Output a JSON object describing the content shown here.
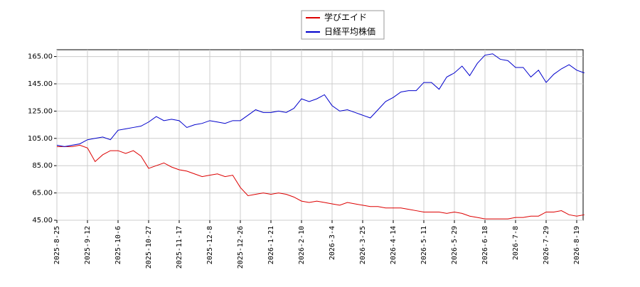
{
  "chart_data": {
    "type": "line",
    "categories": [
      "2025-8-25",
      null,
      null,
      null,
      "2025-9-12",
      null,
      null,
      null,
      "2025-10-6",
      null,
      null,
      null,
      "2025-10-27",
      null,
      null,
      null,
      "2025-11-17",
      null,
      null,
      null,
      "2025-12-8",
      null,
      null,
      null,
      "2025-12-26",
      null,
      null,
      null,
      "2026-1-21",
      null,
      null,
      null,
      "2026-2-10",
      null,
      null,
      null,
      "2026-3-4",
      null,
      null,
      null,
      "2026-3-25",
      null,
      null,
      null,
      "2026-4-14",
      null,
      null,
      null,
      "2026-5-11",
      null,
      null,
      null,
      "2026-5-29",
      null,
      null,
      null,
      "2026-6-18",
      null,
      null,
      null,
      "2026-7-8",
      null,
      null,
      null,
      "2026-7-29",
      null,
      null,
      null,
      "2026-8-19",
      null
    ],
    "series": [
      {
        "name": "学びエイド",
        "color": "#dd0000",
        "values": [
          99,
          99,
          99,
          100,
          98,
          88,
          93,
          96,
          96,
          94,
          96,
          92,
          83,
          85,
          87,
          84,
          82,
          81,
          79,
          77,
          78,
          79,
          77,
          78,
          69,
          63,
          64,
          65,
          64,
          65,
          64,
          62,
          59,
          58,
          59,
          58,
          57,
          56,
          58,
          57,
          56,
          55,
          55,
          54,
          54,
          54,
          53,
          52,
          51,
          51,
          51,
          50,
          51,
          50,
          48,
          47,
          46,
          46,
          46,
          46,
          47,
          47,
          48,
          48,
          51,
          51,
          52,
          49,
          48,
          49
        ]
      },
      {
        "name": "日経平均株価",
        "color": "#0000cc",
        "values": [
          100,
          99,
          100,
          101,
          104,
          105,
          106,
          104,
          111,
          112,
          113,
          114,
          117,
          121,
          118,
          119,
          118,
          113,
          115,
          116,
          118,
          117,
          116,
          118,
          118,
          122,
          126,
          124,
          124,
          125,
          124,
          127,
          134,
          132,
          134,
          137,
          129,
          125,
          126,
          124,
          122,
          120,
          126,
          132,
          135,
          139,
          140,
          140,
          146,
          146,
          141,
          150,
          153,
          158,
          151,
          160,
          166,
          167,
          163,
          162,
          157,
          157,
          150,
          155,
          146,
          152,
          156,
          159,
          155,
          153
        ]
      }
    ],
    "ylim": [
      45,
      170
    ],
    "yticks": [
      {
        "value": 45,
        "label": "45.00"
      },
      {
        "value": 65,
        "label": "65.00"
      },
      {
        "value": 85,
        "label": "85.00"
      },
      {
        "value": 105,
        "label": "105.00"
      },
      {
        "value": 125,
        "label": "125.00"
      },
      {
        "value": 145,
        "label": "145.00"
      },
      {
        "value": 165,
        "label": "165.00"
      }
    ],
    "grid": true,
    "legend": "top"
  }
}
